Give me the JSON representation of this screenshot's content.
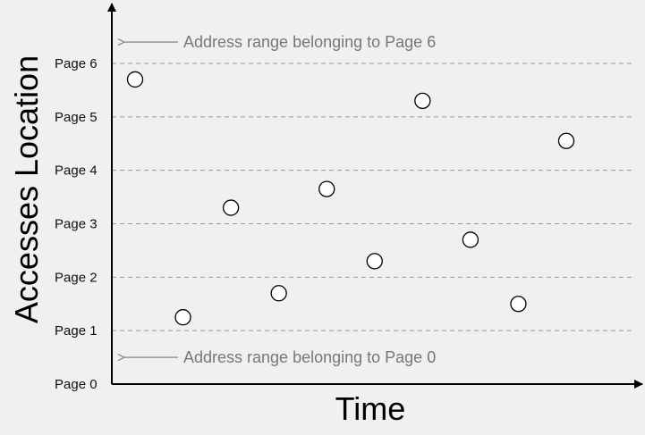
{
  "chart_data": {
    "type": "scatter",
    "xlabel": "Time",
    "ylabel": "Accesses Location",
    "ylim": [
      0,
      6
    ],
    "grid": true,
    "colors": {
      "background": "#f0f0f0",
      "axis": "#000000",
      "grid": "#999999",
      "marker_fill": "#ffffff",
      "marker_stroke": "#000000",
      "annotation": "#777777"
    },
    "y_ticks": [
      {
        "value": 0,
        "label": "Page 0"
      },
      {
        "value": 1,
        "label": "Page 1"
      },
      {
        "value": 2,
        "label": "Page 2"
      },
      {
        "value": 3,
        "label": "Page 3"
      },
      {
        "value": 4,
        "label": "Page 4"
      },
      {
        "value": 5,
        "label": "Page 5"
      },
      {
        "value": 6,
        "label": "Page 6"
      }
    ],
    "annotations": [
      {
        "text": "Address range belonging to Page 6",
        "y": 6.4
      },
      {
        "text": "Address range belonging to Page 0",
        "y": 0.5
      }
    ],
    "points": [
      {
        "x": 1,
        "y": 5.7
      },
      {
        "x": 2,
        "y": 1.25
      },
      {
        "x": 3,
        "y": 3.3
      },
      {
        "x": 4,
        "y": 1.7
      },
      {
        "x": 5,
        "y": 3.65
      },
      {
        "x": 6,
        "y": 2.3
      },
      {
        "x": 7,
        "y": 5.3
      },
      {
        "x": 8,
        "y": 2.7
      },
      {
        "x": 9,
        "y": 1.5
      },
      {
        "x": 10,
        "y": 4.55
      }
    ]
  }
}
